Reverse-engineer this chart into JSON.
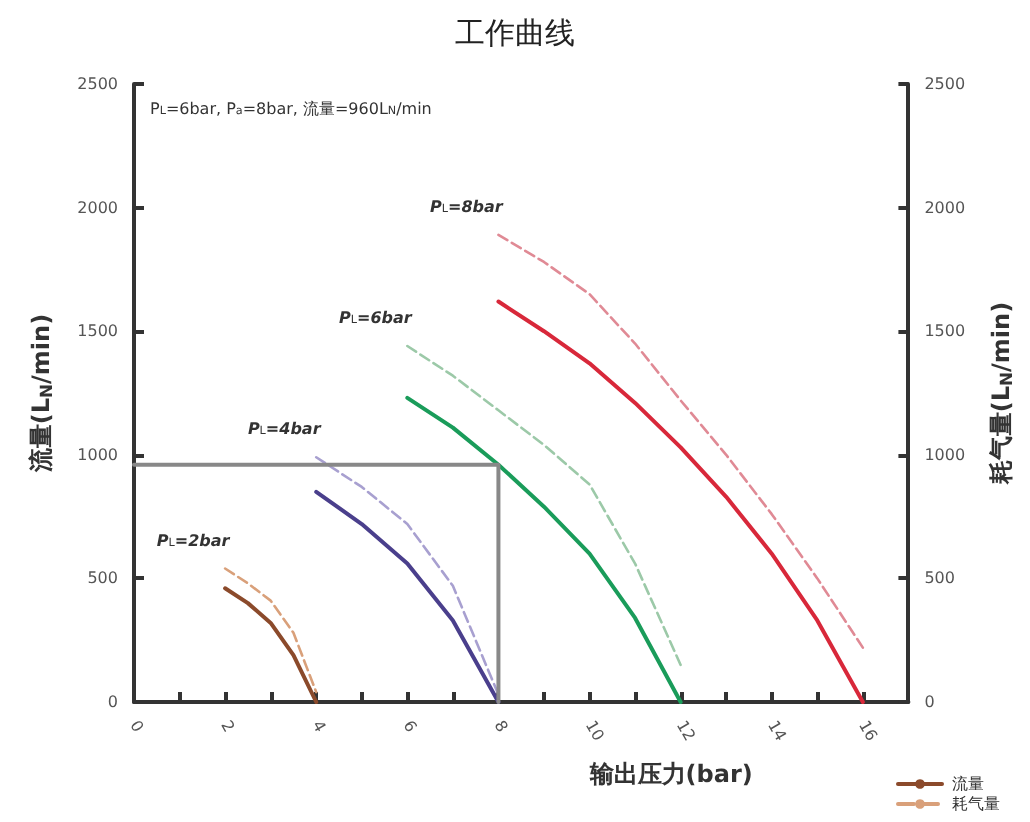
{
  "chart_data": {
    "type": "line",
    "title": "工作曲线",
    "xlabel": "输出压力(bar)",
    "ylabel": "流量(L$_{N}$/min)",
    "y2label": "耗气量(L$_{N}$/min)",
    "xlim": [
      0,
      17
    ],
    "xticks": [
      0,
      {
        "value": 1,
        "label": null
      },
      2,
      {
        "value": 3,
        "label": null
      },
      4,
      {
        "value": 5,
        "label": null
      },
      6,
      {
        "value": 7,
        "label": null
      },
      8,
      {
        "value": 9,
        "label": null
      },
      10,
      {
        "value": 11,
        "label": null
      },
      12,
      {
        "value": 13,
        "label": null
      },
      14,
      {
        "value": 15,
        "label": null
      },
      16
    ],
    "ylim": [
      0,
      2500
    ],
    "yticks": [
      0,
      500,
      1000,
      1500,
      2000,
      2500
    ],
    "y2lim": [
      0,
      2500
    ],
    "y2ticks": [
      0,
      500,
      1000,
      1500,
      2000,
      2500
    ],
    "grid": false,
    "legend": "bottom right",
    "marker": "none",
    "series": [
      {
        "name": "流量",
        "color": "#8b4a2b",
        "line_style": "solid",
        "x": [
          2,
          2.5,
          3,
          3.5,
          4
        ],
        "values": [
          460,
          400,
          320,
          190,
          0
        ]
      },
      {
        "name": "耗气量",
        "color": "#d9a07a",
        "axis": "y2",
        "line_style": "dashed",
        "x": [
          2,
          2.5,
          3,
          3.5,
          4
        ],
        "values": [
          540,
          480,
          410,
          280,
          40
        ]
      },
      {
        "color": "#4a3f8c",
        "line_style": "solid",
        "x": [
          4,
          5,
          6,
          7,
          8
        ],
        "values": [
          850,
          720,
          560,
          330,
          0
        ]
      },
      {
        "color": "#a8a0d0",
        "axis": "y2",
        "line_style": "dashed",
        "x": [
          4,
          5,
          6,
          7,
          8
        ],
        "values": [
          990,
          870,
          720,
          470,
          30
        ]
      },
      {
        "color": "#1a9c5a",
        "line_style": "solid",
        "x": [
          6,
          7,
          8,
          9,
          10,
          11,
          12
        ],
        "values": [
          1230,
          1110,
          960,
          790,
          600,
          340,
          0
        ]
      },
      {
        "color": "#9cc9a8",
        "axis": "y2",
        "line_style": "dashed",
        "x": [
          6,
          7,
          8,
          9,
          10,
          11,
          12
        ],
        "values": [
          1440,
          1320,
          1180,
          1040,
          880,
          560,
          150
        ]
      },
      {
        "color": "#d8283a",
        "line_style": "solid",
        "x": [
          8,
          9,
          10,
          11,
          12,
          13,
          14,
          15,
          16
        ],
        "values": [
          1620,
          1500,
          1370,
          1210,
          1030,
          830,
          600,
          330,
          0
        ]
      },
      {
        "color": "#e08a95",
        "axis": "y2",
        "line_style": "dashed",
        "x": [
          8,
          9,
          10,
          11,
          12,
          13,
          14,
          15,
          16
        ],
        "values": [
          1890,
          1780,
          1650,
          1450,
          1220,
          1000,
          760,
          500,
          220
        ]
      },
      {
        "color": "#888888",
        "line_style": "solid",
        "x": [
          0,
          8,
          8
        ],
        "values": [
          960,
          960,
          0
        ]
      }
    ],
    "annotations": [
      "P$_{L}$=6bar, P$_{a}$=8bar, 流量=960L$_{N}$/min",
      {
        "text": "P$_{L}$=2bar",
        "x": 2,
        "y": 540
      },
      {
        "text": "P$_{L}$=4bar",
        "x": 4,
        "y": 990
      },
      {
        "text": "P$_{L}$=6bar",
        "x": 6,
        "y": 1440
      },
      {
        "text": "P$_{L}$=8bar",
        "x": 8,
        "y": 1890
      }
    ]
  }
}
